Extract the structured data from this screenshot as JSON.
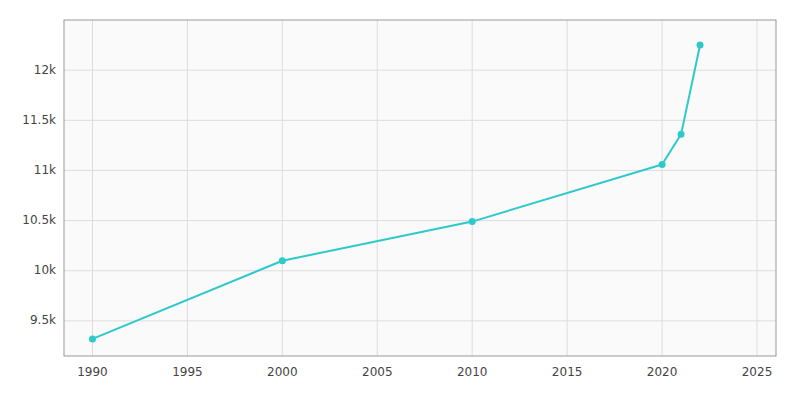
{
  "chart_data": {
    "type": "line",
    "x": [
      1990,
      2000,
      2010,
      2020,
      2021,
      2022
    ],
    "values": [
      9320,
      10100,
      10490,
      11060,
      11360,
      12250
    ],
    "color": "#2DC9CB",
    "marker": "circle",
    "xlim": [
      1988.5,
      2026
    ],
    "ylim": [
      9150,
      12500
    ],
    "xticks": [
      1990,
      1995,
      2000,
      2005,
      2010,
      2015,
      2020,
      2025
    ],
    "yticks": [
      {
        "value": 9500,
        "label": "9.5k"
      },
      {
        "value": 10000,
        "label": "10k"
      },
      {
        "value": 10500,
        "label": "10.5k"
      },
      {
        "value": 11000,
        "label": "11k"
      },
      {
        "value": 11500,
        "label": "11.5k"
      },
      {
        "value": 12000,
        "label": "12k"
      }
    ],
    "grid": true
  }
}
